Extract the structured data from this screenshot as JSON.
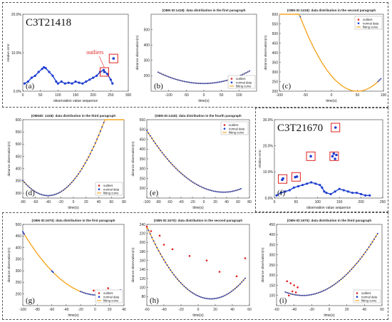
{
  "panels": [
    {
      "id": "a",
      "letter": "(a)",
      "big_label": "C3T21418",
      "title": "",
      "xlabel": "observation value sequence",
      "ylabel": "relative error",
      "xlim": [
        0,
        300
      ],
      "ylim": [
        0,
        0.2
      ],
      "xticks": [
        0,
        50,
        100,
        150,
        200,
        250,
        300
      ],
      "yticks": [
        0,
        0.1,
        0.2
      ],
      "ytick_labels": [
        "0.0%",
        "10.0%",
        "20.0%"
      ],
      "annotation": "outliers",
      "normal": [
        [
          5,
          0.02
        ],
        [
          15,
          0.025
        ],
        [
          25,
          0.035
        ],
        [
          35,
          0.04
        ],
        [
          45,
          0.05
        ],
        [
          55,
          0.058
        ],
        [
          60,
          0.062
        ],
        [
          65,
          0.06
        ],
        [
          75,
          0.05
        ],
        [
          85,
          0.04
        ],
        [
          95,
          0.025
        ],
        [
          100,
          0.02
        ],
        [
          110,
          0.025
        ],
        [
          120,
          0.02
        ],
        [
          130,
          0.022
        ],
        [
          140,
          0.02
        ],
        [
          150,
          0.025
        ],
        [
          160,
          0.022
        ],
        [
          170,
          0.02
        ],
        [
          180,
          0.025
        ],
        [
          190,
          0.03
        ],
        [
          200,
          0.035
        ],
        [
          210,
          0.04
        ],
        [
          220,
          0.05
        ],
        [
          230,
          0.055
        ],
        [
          240,
          0.045
        ],
        [
          250,
          0.03
        ],
        [
          255,
          0.02
        ]
      ],
      "outliers": [
        [
          232,
          0.05
        ],
        [
          258,
          0.085
        ]
      ],
      "boxes": [
        [
          232,
          0.05
        ],
        [
          258,
          0.085
        ]
      ]
    },
    {
      "id": "b",
      "letter": "(b)",
      "title": "(OBN ID:1418): data distribution in the first paragraph",
      "xlabel": "time(s)",
      "ylabel": "distance observation(m)",
      "xlim": [
        -150,
        150
      ],
      "ylim": [
        100,
        600
      ],
      "xticks": [
        -100,
        -50,
        0,
        50,
        100
      ],
      "yticks": [
        200,
        300,
        400,
        500
      ],
      "legend": [
        "outliers",
        "normal data",
        "fitting curve"
      ],
      "curve": {
        "vx": 0,
        "vy": 150,
        "k": 0.0048,
        "a": 0.9,
        "x0": -130,
        "x1": 130
      }
    },
    {
      "id": "c",
      "letter": "(c)",
      "title": "(OBN ID:1418): data distribution in the second paragraph",
      "xlabel": "time(s)",
      "ylabel": "distance observation(m)",
      "xlim": [
        -100,
        100
      ],
      "ylim": [
        200,
        600
      ],
      "xticks": [
        -100,
        -50,
        0,
        50,
        100
      ],
      "yticks": [
        200,
        250,
        300,
        350,
        400,
        450,
        500,
        550,
        600
      ],
      "legend": [
        "outliers",
        "normal data",
        "fitting curve"
      ],
      "curve": {
        "vx": 50,
        "vy": 200,
        "k": 0.032,
        "a": 1,
        "x0": -100,
        "x1": 95
      },
      "point_ranges": [
        [
          -100,
          -60
        ],
        [
          90,
          95
        ]
      ]
    },
    {
      "id": "d",
      "letter": "(d)",
      "title": "(OBNID: 1418): data distribution in the third paragraph",
      "xlabel": "time(s)",
      "ylabel": "distance observation(m)",
      "xlim": [
        -80,
        80
      ],
      "ylim": [
        280,
        600
      ],
      "xticks": [
        -80,
        -60,
        -40,
        -20,
        0,
        20,
        40,
        60,
        80
      ],
      "yticks": [
        300,
        350,
        400,
        450,
        500,
        550,
        600
      ],
      "legend": [
        "outliers",
        "normal data",
        "fitting curve"
      ],
      "curve": {
        "vx": -40,
        "vy": 290,
        "k": 0.0385,
        "a": 1,
        "x0": -80,
        "x1": 80
      }
    },
    {
      "id": "e",
      "letter": "(e)",
      "title": "(OBN ID:1418): data distribution in the fourth paragraph",
      "xlabel": "time(s)",
      "ylabel": "distance observation(m)",
      "xlim": [
        -100,
        80
      ],
      "ylim": [
        150,
        550
      ],
      "xticks": [
        -100,
        -80,
        -60,
        -40,
        -20,
        0,
        20,
        40,
        60,
        80
      ],
      "yticks": [
        200,
        250,
        300,
        350,
        400,
        450,
        500,
        550
      ],
      "legend": [
        "outliers",
        "normal data",
        "fitting curve"
      ],
      "curve": {
        "vx": 35,
        "vy": 180,
        "k": 0.0192,
        "a": 0.9,
        "x0": -100,
        "x1": 65
      }
    },
    {
      "id": "f",
      "letter": "(f)",
      "big_label": "C3T21670",
      "title": "",
      "xlabel": "observation value sequence",
      "ylabel": "relative error",
      "xlim": [
        0,
        250
      ],
      "ylim": [
        0,
        0.3
      ],
      "xticks": [
        0,
        50,
        100,
        150,
        200,
        250
      ],
      "yticks": [
        0,
        0.1,
        0.2,
        0.3
      ],
      "ytick_labels": [
        "0.0%",
        "10.0%",
        "20.0%",
        "30.0%"
      ],
      "normal": [
        [
          5,
          0.01
        ],
        [
          15,
          0.02
        ],
        [
          25,
          0.025
        ],
        [
          35,
          0.03
        ],
        [
          45,
          0.04
        ],
        [
          55,
          0.045
        ],
        [
          65,
          0.05
        ],
        [
          75,
          0.055
        ],
        [
          85,
          0.06
        ],
        [
          95,
          0.055
        ],
        [
          105,
          0.05
        ],
        [
          110,
          0.04
        ],
        [
          115,
          0.025
        ],
        [
          120,
          0.02
        ],
        [
          130,
          0.015
        ],
        [
          140,
          0.025
        ],
        [
          150,
          0.035
        ],
        [
          160,
          0.03
        ],
        [
          170,
          0.025
        ],
        [
          180,
          0.02
        ],
        [
          190,
          0.02
        ],
        [
          200,
          0.015
        ],
        [
          210,
          0.01
        ],
        [
          220,
          0.01
        ]
      ],
      "outliers": [
        [
          18,
          0.07
        ],
        [
          20,
          0.075
        ],
        [
          48,
          0.08
        ],
        [
          52,
          0.082
        ],
        [
          84,
          0.16
        ],
        [
          134,
          0.16
        ],
        [
          137,
          0.17
        ],
        [
          140,
          0.15
        ],
        [
          143,
          0.165
        ],
        [
          141,
          0.27
        ]
      ],
      "boxes": [
        [
          19,
          0.073
        ],
        [
          50,
          0.081
        ],
        [
          84,
          0.16
        ],
        [
          138,
          0.16
        ],
        [
          141,
          0.27
        ]
      ]
    },
    {
      "id": "g",
      "letter": "(g)",
      "title": "(OBN ID:1670): data distribution in the first paragraph",
      "xlabel": "time(s)",
      "ylabel": "distance observation(m)",
      "xlim": [
        -100,
        40
      ],
      "ylim": [
        150,
        500
      ],
      "xticks": [
        -100,
        -80,
        -60,
        -40,
        -20,
        0,
        20,
        40
      ],
      "yticks": [
        200,
        250,
        300,
        350,
        400,
        450,
        500
      ],
      "legend": [
        "outliers",
        "normal data",
        "fitting curve"
      ],
      "curve": {
        "vx": 5,
        "vy": 195,
        "k": 0.0248,
        "a": 1,
        "x0": -100,
        "x1": 35
      },
      "point_ranges": [
        [
          -100,
          -98
        ],
        [
          -60,
          -58
        ],
        [
          -20,
          35
        ]
      ],
      "outliers": [
        [
          -2,
          215
        ],
        [
          2,
          213
        ],
        [
          8,
          210
        ],
        [
          18,
          225
        ]
      ]
    },
    {
      "id": "h",
      "letter": "(h)",
      "title": "(OBN ID:1670): data distribution in the second paragraph",
      "xlabel": "time(s)",
      "ylabel": "distance observation(m)",
      "xlim": [
        -60,
        60
      ],
      "ylim": [
        60,
        240
      ],
      "xticks": [
        -60,
        -40,
        -20,
        0,
        20,
        40,
        60
      ],
      "yticks": [
        80,
        100,
        120,
        140,
        160,
        180,
        200,
        220,
        240
      ],
      "curve": {
        "vx": 15,
        "vy": 75,
        "k": 0.0285,
        "a": 1,
        "x0": -60,
        "x1": 55
      },
      "outliers": [
        [
          -55,
          225
        ],
        [
          -45,
          215
        ],
        [
          -40,
          195
        ],
        [
          -30,
          185
        ],
        [
          -10,
          170
        ],
        [
          10,
          160
        ],
        [
          25,
          135
        ],
        [
          45,
          125
        ],
        [
          55,
          165
        ],
        [
          -60,
          235
        ]
      ]
    },
    {
      "id": "i",
      "letter": "(i)",
      "title": "(OBN ID:1670): data distribution in the third paragraph",
      "xlabel": "time(s)",
      "ylabel": "distance observation(m)",
      "xlim": [
        -60,
        60
      ],
      "ylim": [
        50,
        450
      ],
      "xticks": [
        -60,
        -40,
        -20,
        0,
        20,
        40,
        60
      ],
      "yticks": [
        100,
        150,
        200,
        250,
        300,
        350,
        400,
        450
      ],
      "legend": [
        "outliers",
        "normal data",
        "fitting curve"
      ],
      "curve": {
        "vx": -30,
        "vy": 100,
        "k": 0.0422,
        "a": 1,
        "x0": -50,
        "x1": 55
      },
      "outliers": [
        [
          -48,
          170
        ],
        [
          -44,
          160
        ],
        [
          -40,
          150
        ],
        [
          -36,
          140
        ],
        [
          -42,
          120
        ],
        [
          -38,
          115
        ],
        [
          -46,
          100
        ]
      ]
    }
  ],
  "colors": {
    "curve": "#f5a623",
    "normal": "#1f3fcf",
    "outlier": "#e02020",
    "box": "#e02020"
  }
}
